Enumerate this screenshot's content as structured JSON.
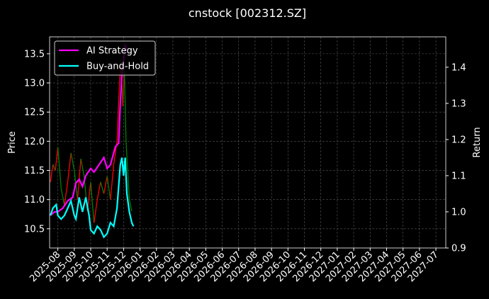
{
  "chart_data": {
    "type": "price-return",
    "title": "cnstock [002312.SZ]",
    "ylabel": "Price",
    "y2label": "Return",
    "xlim": [
      -0.5,
      23.6
    ],
    "xticks": [
      {
        "value": 0,
        "label": "2025-08"
      },
      {
        "value": 1,
        "label": "2025-09"
      },
      {
        "value": 2,
        "label": "2025-10"
      },
      {
        "value": 3,
        "label": "2025-11"
      },
      {
        "value": 4,
        "label": "2025-12"
      },
      {
        "value": 5,
        "label": "2026-01"
      },
      {
        "value": 6,
        "label": "2026-02"
      },
      {
        "value": 7,
        "label": "2026-03"
      },
      {
        "value": 8,
        "label": "2026-04"
      },
      {
        "value": 9,
        "label": "2026-05"
      },
      {
        "value": 10,
        "label": "2026-06"
      },
      {
        "value": 11,
        "label": "2026-07"
      },
      {
        "value": 12,
        "label": "2026-08"
      },
      {
        "value": 13,
        "label": "2026-09"
      },
      {
        "value": 14,
        "label": "2026-10"
      },
      {
        "value": 15,
        "label": "2026-11"
      },
      {
        "value": 16,
        "label": "2026-12"
      },
      {
        "value": 17,
        "label": "2027-01"
      },
      {
        "value": 18,
        "label": "2027-02"
      },
      {
        "value": 19,
        "label": "2027-03"
      },
      {
        "value": 20,
        "label": "2027-04"
      },
      {
        "value": 21,
        "label": "2027-05"
      },
      {
        "value": 22,
        "label": "2027-06"
      },
      {
        "value": 23,
        "label": "2027-07"
      }
    ],
    "ylim": [
      10.17,
      13.79
    ],
    "yticks": [
      10.5,
      {
        "value": 11,
        "label": "11.0"
      },
      11.5,
      {
        "value": 12,
        "label": "12.0"
      },
      12.5,
      {
        "value": 13,
        "label": "13.0"
      },
      13.5
    ],
    "y2lim": [
      0.9,
      1.484
    ],
    "y2ticks": [
      0.9,
      {
        "value": 1,
        "label": "1.0"
      },
      1.1,
      1.2,
      1.3,
      1.4
    ],
    "grid": true,
    "legend": "upper-left",
    "price": {
      "up_color": "#ff0000",
      "down_color": "#008000",
      "x": [
        -0.45,
        -0.3,
        -0.15,
        0,
        0.2,
        0.4,
        0.6,
        0.8,
        1.0,
        1.2,
        1.4,
        1.6,
        1.8,
        2.0,
        2.2,
        2.4,
        2.6,
        2.8,
        3.0,
        3.2,
        3.4,
        3.6,
        3.75,
        3.85,
        3.95,
        4.05,
        4.15,
        4.25,
        4.35,
        4.5
      ],
      "values": [
        11.3,
        11.6,
        11.5,
        11.9,
        11.2,
        10.9,
        11.3,
        11.8,
        11.5,
        11.0,
        11.7,
        11.4,
        10.8,
        11.3,
        10.6,
        11.0,
        11.3,
        11.1,
        11.4,
        11.0,
        11.6,
        12.0,
        13.0,
        13.4,
        12.6,
        13.2,
        12.0,
        11.5,
        11.0,
        10.8
      ]
    },
    "series": [
      {
        "name": "AI Strategy",
        "color": "#ff00ff",
        "axis": "y2",
        "x": [
          -0.45,
          -0.2,
          0,
          0.3,
          0.6,
          0.9,
          1.1,
          1.3,
          1.5,
          1.7,
          2.0,
          2.2,
          2.5,
          2.8,
          3.0,
          3.2,
          3.5,
          3.7,
          3.8,
          3.9,
          4.0,
          4.1,
          4.2
        ],
        "values": [
          0.99,
          1.0,
          1.0,
          1.01,
          1.03,
          1.04,
          1.08,
          1.09,
          1.07,
          1.1,
          1.12,
          1.11,
          1.13,
          1.15,
          1.12,
          1.13,
          1.18,
          1.19,
          1.3,
          1.38,
          1.42,
          1.46,
          1.45
        ]
      },
      {
        "name": "Buy-and-Hold",
        "color": "#00ffff",
        "axis": "y2",
        "x": [
          -0.45,
          -0.3,
          -0.1,
          0,
          0.2,
          0.4,
          0.6,
          0.8,
          1.0,
          1.1,
          1.3,
          1.5,
          1.7,
          1.9,
          2.0,
          2.2,
          2.4,
          2.6,
          2.8,
          3.0,
          3.2,
          3.4,
          3.6,
          3.8,
          3.9,
          4.0,
          4.1,
          4.2,
          4.35,
          4.5,
          4.6
        ],
        "values": [
          0.99,
          1.01,
          1.02,
          0.99,
          0.98,
          0.99,
          1.01,
          1.03,
          0.99,
          0.98,
          1.04,
          1.0,
          1.04,
          0.99,
          0.95,
          0.94,
          0.96,
          0.95,
          0.93,
          0.94,
          0.97,
          0.96,
          1.01,
          1.13,
          1.15,
          1.1,
          1.15,
          1.05,
          1.0,
          0.97,
          0.96
        ]
      }
    ]
  }
}
